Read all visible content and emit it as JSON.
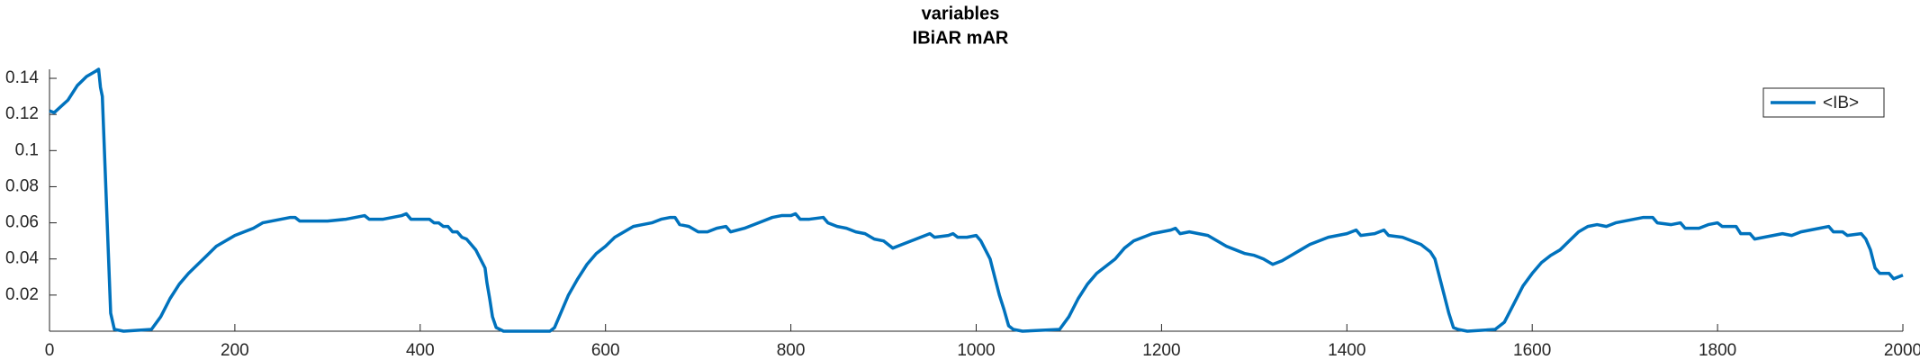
{
  "chart_data": {
    "type": "line",
    "title": "variables",
    "subtitle": "IBiAR mAR",
    "x": [
      0,
      5,
      20,
      30,
      40,
      50,
      53,
      55,
      57,
      60,
      63,
      66,
      70,
      80,
      110,
      120,
      130,
      140,
      150,
      160,
      170,
      180,
      190,
      200,
      210,
      220,
      230,
      240,
      250,
      260,
      265,
      270,
      280,
      300,
      320,
      330,
      340,
      345,
      360,
      380,
      385,
      390,
      400,
      410,
      415,
      420,
      425,
      430,
      435,
      440,
      445,
      450,
      455,
      460,
      465,
      470,
      472,
      475,
      478,
      482,
      490,
      540,
      545,
      550,
      560,
      570,
      580,
      590,
      600,
      610,
      620,
      630,
      640,
      650,
      660,
      670,
      675,
      680,
      690,
      700,
      710,
      720,
      730,
      735,
      750,
      760,
      770,
      780,
      790,
      800,
      805,
      810,
      820,
      835,
      840,
      850,
      860,
      870,
      880,
      890,
      900,
      910,
      920,
      930,
      940,
      950,
      955,
      970,
      975,
      980,
      990,
      1000,
      1005,
      1010,
      1015,
      1020,
      1025,
      1030,
      1035,
      1040,
      1050,
      1090,
      1100,
      1110,
      1120,
      1130,
      1140,
      1150,
      1160,
      1170,
      1180,
      1190,
      1200,
      1210,
      1215,
      1220,
      1230,
      1240,
      1250,
      1260,
      1270,
      1280,
      1290,
      1300,
      1310,
      1320,
      1330,
      1340,
      1350,
      1360,
      1370,
      1380,
      1390,
      1400,
      1410,
      1415,
      1430,
      1440,
      1445,
      1460,
      1470,
      1480,
      1490,
      1495,
      1500,
      1505,
      1510,
      1515,
      1520,
      1530,
      1560,
      1570,
      1580,
      1590,
      1600,
      1610,
      1620,
      1630,
      1640,
      1650,
      1660,
      1670,
      1680,
      1690,
      1700,
      1710,
      1720,
      1730,
      1735,
      1750,
      1760,
      1765,
      1780,
      1790,
      1800,
      1805,
      1820,
      1825,
      1835,
      1840,
      1850,
      1870,
      1880,
      1890,
      1900,
      1910,
      1920,
      1925,
      1935,
      1940,
      1955,
      1960,
      1965,
      1970,
      1975,
      1985,
      1990,
      2000
    ],
    "series": [
      {
        "name": "<IB>",
        "color": "#0072bd",
        "values": [
          0.122,
          0.121,
          0.128,
          0.136,
          0.141,
          0.144,
          0.145,
          0.135,
          0.13,
          0.09,
          0.05,
          0.01,
          0.001,
          0,
          0.001,
          0.008,
          0.018,
          0.026,
          0.032,
          0.037,
          0.042,
          0.047,
          0.05,
          0.053,
          0.055,
          0.057,
          0.06,
          0.061,
          0.062,
          0.063,
          0.063,
          0.061,
          0.061,
          0.061,
          0.062,
          0.063,
          0.064,
          0.062,
          0.062,
          0.064,
          0.065,
          0.062,
          0.062,
          0.062,
          0.06,
          0.06,
          0.058,
          0.058,
          0.055,
          0.055,
          0.052,
          0.051,
          0.048,
          0.045,
          0.04,
          0.035,
          0.027,
          0.018,
          0.008,
          0.002,
          0,
          0,
          0.002,
          0.008,
          0.02,
          0.029,
          0.037,
          0.043,
          0.047,
          0.052,
          0.055,
          0.058,
          0.059,
          0.06,
          0.062,
          0.063,
          0.063,
          0.059,
          0.058,
          0.055,
          0.055,
          0.057,
          0.058,
          0.055,
          0.057,
          0.059,
          0.061,
          0.063,
          0.064,
          0.064,
          0.065,
          0.062,
          0.062,
          0.063,
          0.06,
          0.058,
          0.057,
          0.055,
          0.054,
          0.051,
          0.05,
          0.046,
          0.048,
          0.05,
          0.052,
          0.054,
          0.052,
          0.053,
          0.054,
          0.052,
          0.052,
          0.053,
          0.05,
          0.045,
          0.04,
          0.03,
          0.02,
          0.012,
          0.003,
          0.001,
          0,
          0.001,
          0.008,
          0.018,
          0.026,
          0.032,
          0.036,
          0.04,
          0.046,
          0.05,
          0.052,
          0.054,
          0.055,
          0.056,
          0.057,
          0.054,
          0.055,
          0.054,
          0.053,
          0.05,
          0.047,
          0.045,
          0.043,
          0.042,
          0.04,
          0.037,
          0.039,
          0.042,
          0.045,
          0.048,
          0.05,
          0.052,
          0.053,
          0.054,
          0.056,
          0.053,
          0.054,
          0.056,
          0.053,
          0.052,
          0.05,
          0.048,
          0.044,
          0.04,
          0.03,
          0.02,
          0.01,
          0.002,
          0.001,
          0,
          0.001,
          0.005,
          0.015,
          0.025,
          0.032,
          0.038,
          0.042,
          0.045,
          0.05,
          0.055,
          0.058,
          0.059,
          0.058,
          0.06,
          0.061,
          0.062,
          0.063,
          0.063,
          0.06,
          0.059,
          0.06,
          0.057,
          0.057,
          0.059,
          0.06,
          0.058,
          0.058,
          0.054,
          0.054,
          0.051,
          0.052,
          0.054,
          0.053,
          0.055,
          0.056,
          0.057,
          0.058,
          0.055,
          0.055,
          0.053,
          0.054,
          0.051,
          0.045,
          0.035,
          0.032,
          0.032,
          0.029,
          0.031
        ]
      }
    ],
    "xlim": [
      0,
      2000
    ],
    "xticks": [
      0,
      200,
      400,
      600,
      800,
      1000,
      1200,
      1400,
      1600,
      1800,
      2000
    ],
    "ylim": [
      0,
      0.145
    ],
    "yticks": [
      0.02,
      0.04,
      0.06,
      0.08,
      0.1,
      0.12,
      0.14
    ]
  }
}
